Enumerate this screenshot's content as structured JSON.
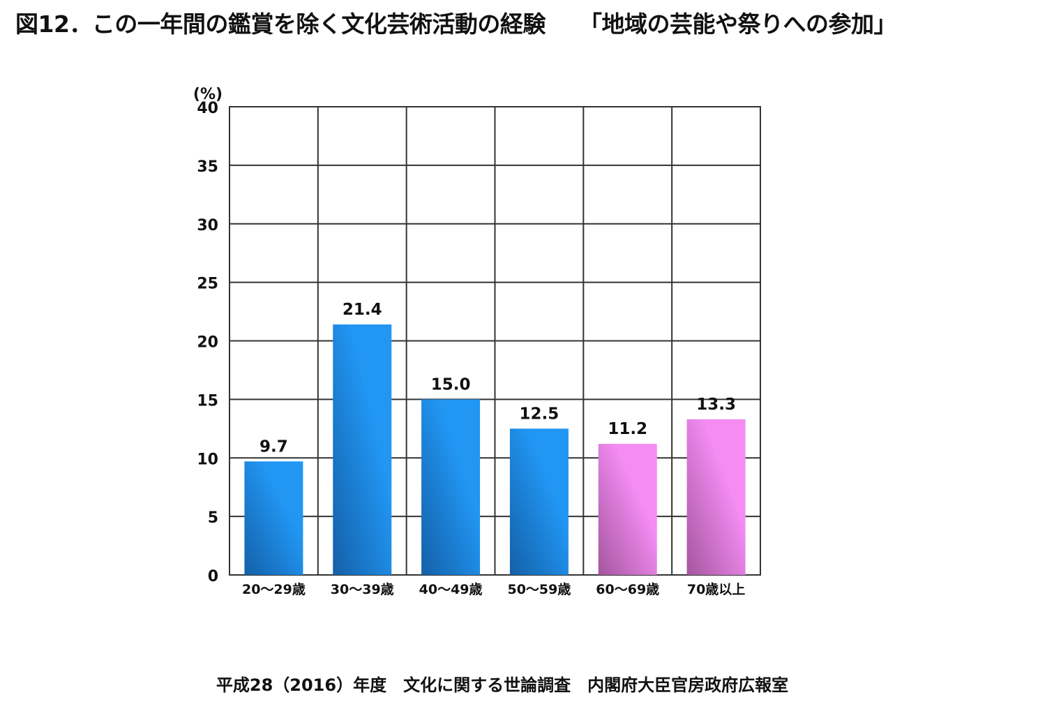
{
  "title": "図12．この一年間の鑑賞を除く文化芸術活動の経験",
  "subtitle": "「地域の芸能や祭りへの参加」",
  "source": "平成28（2016）年度　文化に関する世論調査　内閣府大臣官房政府広報室",
  "chart_data": {
    "type": "bar",
    "title": "",
    "xlabel": "",
    "ylabel": "(%)",
    "ylim": [
      0,
      40
    ],
    "yticks": [
      0,
      5,
      10,
      15,
      20,
      25,
      30,
      35,
      40
    ],
    "grid": true,
    "categories": [
      "20～29歳",
      "30～39歳",
      "40～49歳",
      "50～59歳",
      "60～69歳",
      "70歳以上"
    ],
    "values": [
      9.7,
      21.4,
      15.0,
      12.5,
      11.2,
      13.3
    ],
    "data_labels": [
      "9.7",
      "21.4",
      "15.0",
      "12.5",
      "11.2",
      "13.3"
    ],
    "colors": {
      "under_60_light": "#2196f3",
      "under_60_dark": "#1460a8",
      "over_60_light": "#f48cf4",
      "over_60_dark": "#a4569e"
    }
  }
}
